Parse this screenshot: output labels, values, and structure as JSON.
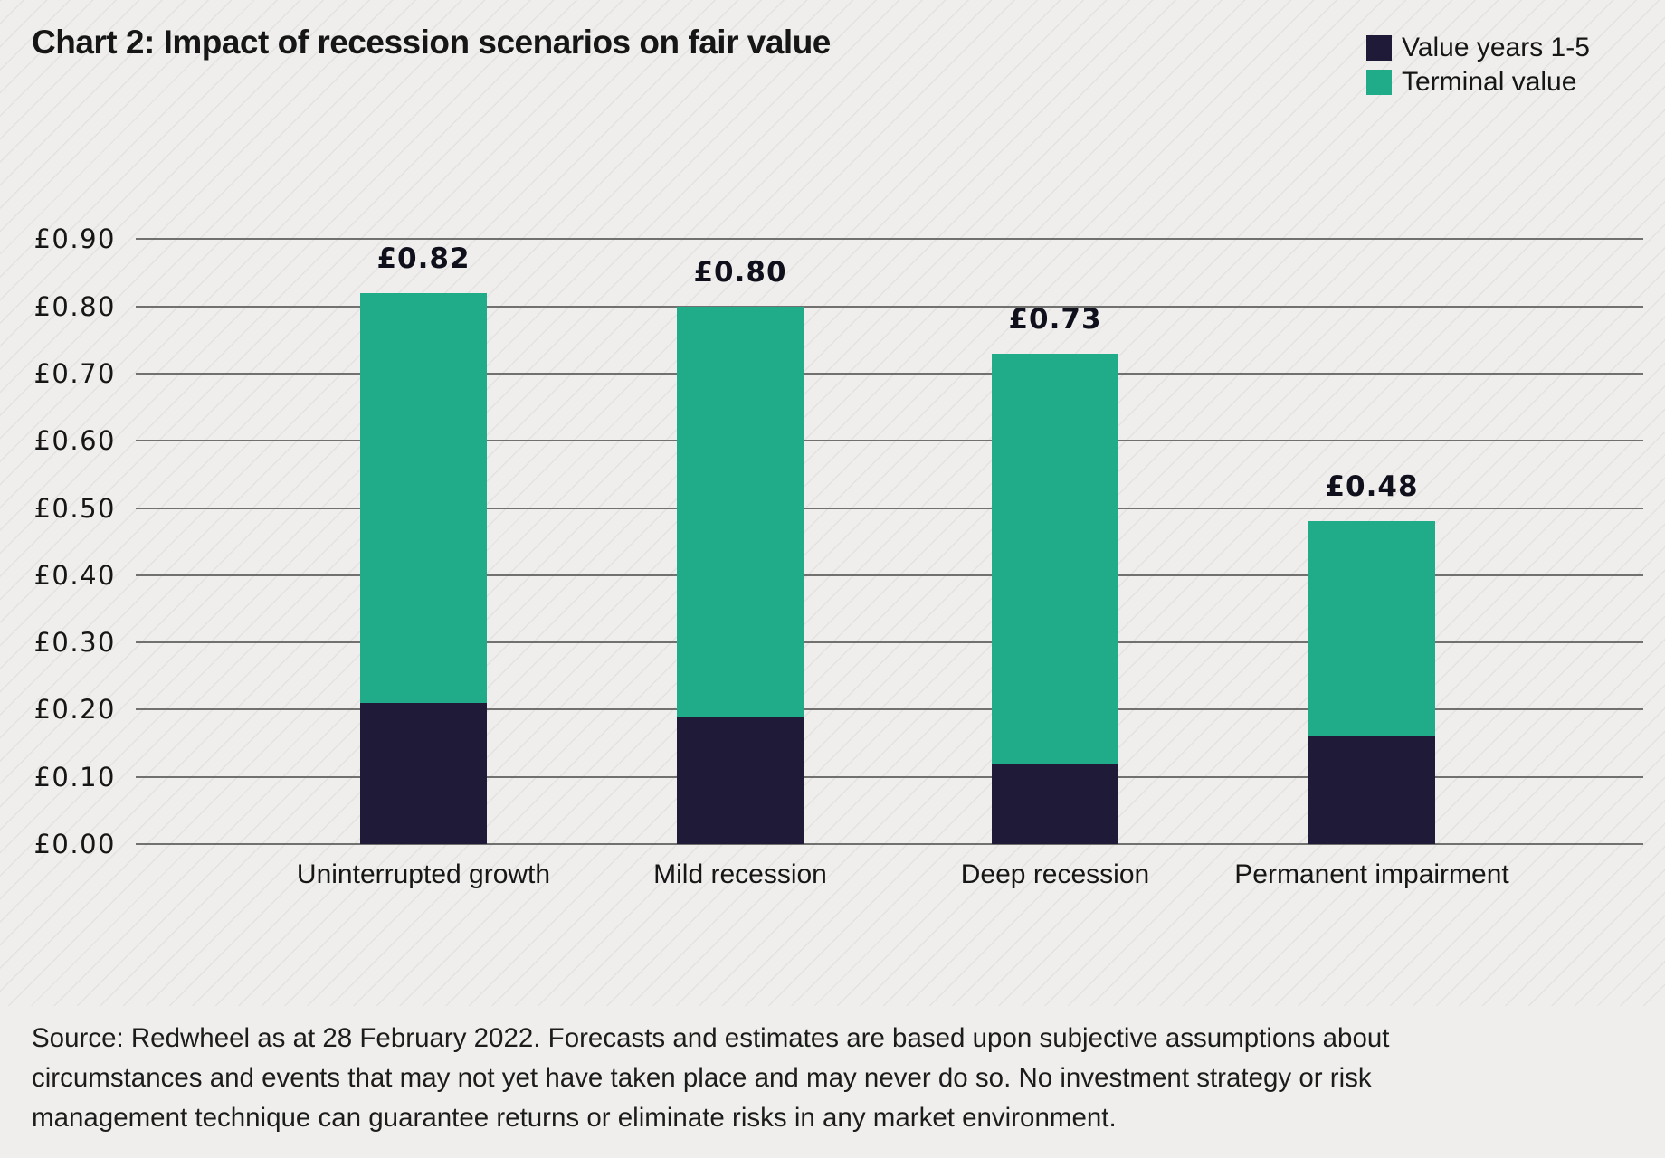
{
  "title": "Chart 2: Impact of recession scenarios on fair value",
  "chart_data": {
    "type": "bar",
    "stacked": true,
    "title": "Chart 2: Impact of recession scenarios on fair value",
    "categories": [
      "Uninterrupted growth",
      "Mild recession",
      "Deep recession",
      "Permanent impairment"
    ],
    "series": [
      {
        "name": "Value years 1-5",
        "color": "#1f1a38",
        "values": [
          0.21,
          0.19,
          0.12,
          0.16
        ]
      },
      {
        "name": "Terminal value",
        "color": "#20ab89",
        "values": [
          0.61,
          0.61,
          0.61,
          0.32
        ]
      }
    ],
    "totals": {
      "values": [
        0.82,
        0.8,
        0.73,
        0.48
      ],
      "labels": [
        "£0.82",
        "£0.80",
        "£0.73",
        "£0.48"
      ]
    },
    "ylim": [
      0,
      0.9
    ],
    "yticks": {
      "values": [
        0.0,
        0.1,
        0.2,
        0.3,
        0.4,
        0.5,
        0.6,
        0.7,
        0.8,
        0.9
      ],
      "labels": [
        "£0.00",
        "£0.10",
        "£0.20",
        "£0.30",
        "£0.40",
        "£0.50",
        "£0.60",
        "£0.70",
        "£0.80",
        "£0.90"
      ]
    },
    "grid": "horizontal",
    "legend_position": "top-right",
    "currency": "GBP"
  },
  "source_note": {
    "lines": [
      "Source: Redwheel as at 28 February 2022. Forecasts and estimates are based upon subjective assumptions about",
      "circumstances and events that may not yet have taken place and may never do so. No investment strategy or risk",
      "management technique can guarantee returns or eliminate risks in any market environment."
    ]
  },
  "colors": {
    "background": "#efeeec",
    "stripe": "#e3e2e0",
    "gridline": "#5a5a5a",
    "text": "#161616",
    "value_years": "#1f1a38",
    "terminal_value": "#20ab89"
  }
}
